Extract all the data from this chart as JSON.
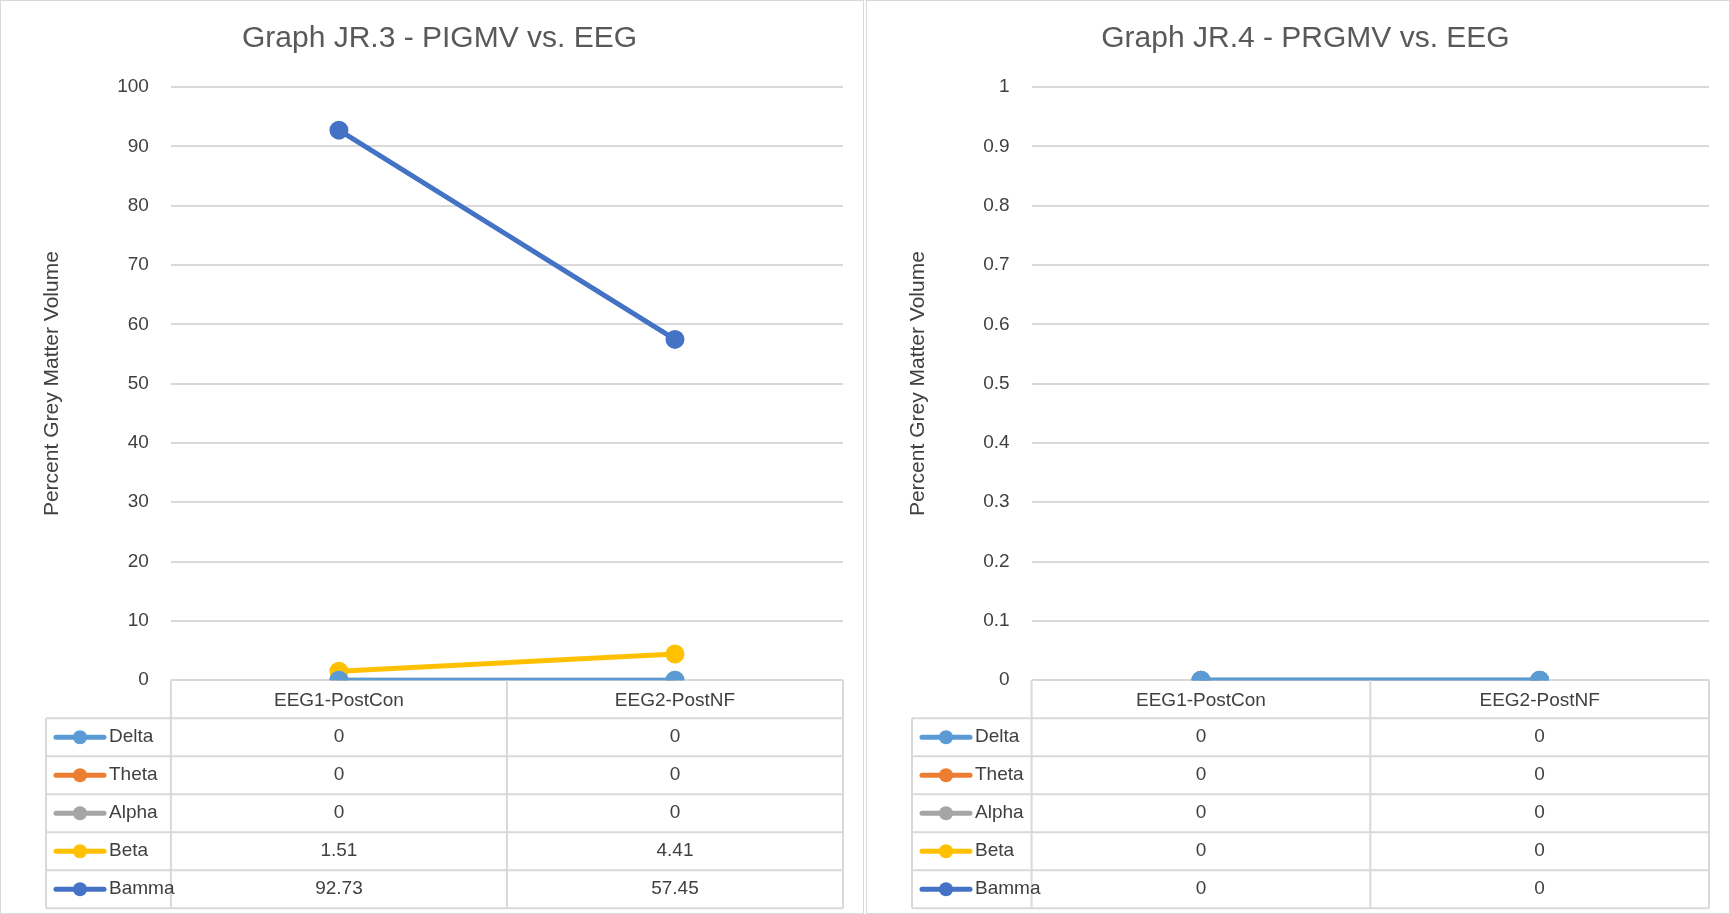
{
  "chart_data": [
    {
      "type": "line",
      "title": "Graph JR.3 - PIGMV vs. EEG",
      "ylabel": "Percent Grey Matter Volume",
      "categories": [
        "EEG1-PostCon",
        "EEG2-PostNF"
      ],
      "series": [
        {
          "name": "Delta",
          "color": "#5b9bd5",
          "values": [
            0,
            0
          ],
          "value_labels": [
            "0",
            "0"
          ]
        },
        {
          "name": "Theta",
          "color": "#ed7d31",
          "values": [
            null,
            null
          ],
          "value_labels": [
            "0",
            "0"
          ]
        },
        {
          "name": "Alpha",
          "color": "#a5a5a5",
          "values": [
            0,
            0
          ],
          "value_labels": [
            "0",
            "0"
          ]
        },
        {
          "name": "Beta",
          "color": "#ffc000",
          "values": [
            1.51,
            4.41
          ],
          "value_labels": [
            "1.51",
            "4.41"
          ]
        },
        {
          "name": "Bamma",
          "color": "#4472c4",
          "values": [
            92.73,
            57.45
          ],
          "value_labels": [
            "92.73",
            "57.45"
          ]
        }
      ],
      "ylim": [
        0,
        100
      ],
      "yticks": [
        0,
        10,
        20,
        30,
        40,
        50,
        60,
        70,
        80,
        90,
        100
      ],
      "grid": "y",
      "legend": "bottom",
      "marker": "circle",
      "line_style": "solid"
    },
    {
      "type": "line",
      "title": "Graph JR.4 - PRGMV vs. EEG",
      "ylabel": "Percent Grey Matter Volume",
      "categories": [
        "EEG1-PostCon",
        "EEG2-PostNF"
      ],
      "series": [
        {
          "name": "Delta",
          "color": "#5b9bd5",
          "values": [
            0,
            0
          ],
          "value_labels": [
            "0",
            "0"
          ]
        },
        {
          "name": "Theta",
          "color": "#ed7d31",
          "values": [
            null,
            null
          ],
          "value_labels": [
            "0",
            "0"
          ]
        },
        {
          "name": "Alpha",
          "color": "#a5a5a5",
          "values": [
            0,
            0
          ],
          "value_labels": [
            "0",
            "0"
          ]
        },
        {
          "name": "Beta",
          "color": "#ffc000",
          "values": [
            null,
            null
          ],
          "value_labels": [
            "0",
            "0"
          ]
        },
        {
          "name": "Bamma",
          "color": "#4472c4",
          "values": [
            0,
            0
          ],
          "value_labels": [
            "0",
            "0"
          ]
        }
      ],
      "ylim": [
        0,
        1
      ],
      "yticks": [
        0,
        0.1,
        0.2,
        0.3,
        0.4,
        0.5,
        0.6,
        0.7,
        0.8,
        0.9,
        1
      ],
      "grid": "y",
      "legend": "bottom",
      "marker": "circle",
      "line_style": "solid"
    }
  ]
}
